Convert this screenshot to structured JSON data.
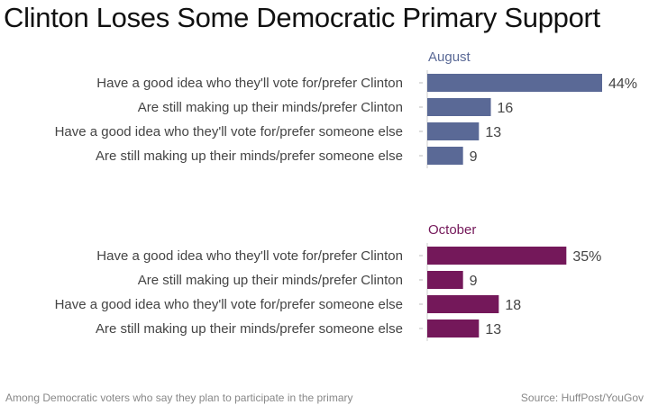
{
  "title": "Clinton Loses Some Democratic Primary Support",
  "note": "Among Democratic voters who say they plan to participate in the primary",
  "source": "Source: HuffPost/YouGov",
  "chart_data": {
    "type": "bar",
    "orientation": "horizontal",
    "unit_suffix": "%",
    "categories": [
      "Have a good idea who they'll vote for/prefer Clinton",
      "Are still making up their minds/prefer Clinton",
      "Have a good idea who they'll vote for/prefer someone else",
      "Are still making up their minds/prefer someone else"
    ],
    "series": [
      {
        "name": "August",
        "color": "#5a6996",
        "values": [
          44,
          16,
          13,
          9
        ]
      },
      {
        "name": "October",
        "color": "#74185a",
        "values": [
          35,
          9,
          18,
          13
        ]
      }
    ],
    "xlim": [
      0,
      44
    ],
    "grid": false
  }
}
